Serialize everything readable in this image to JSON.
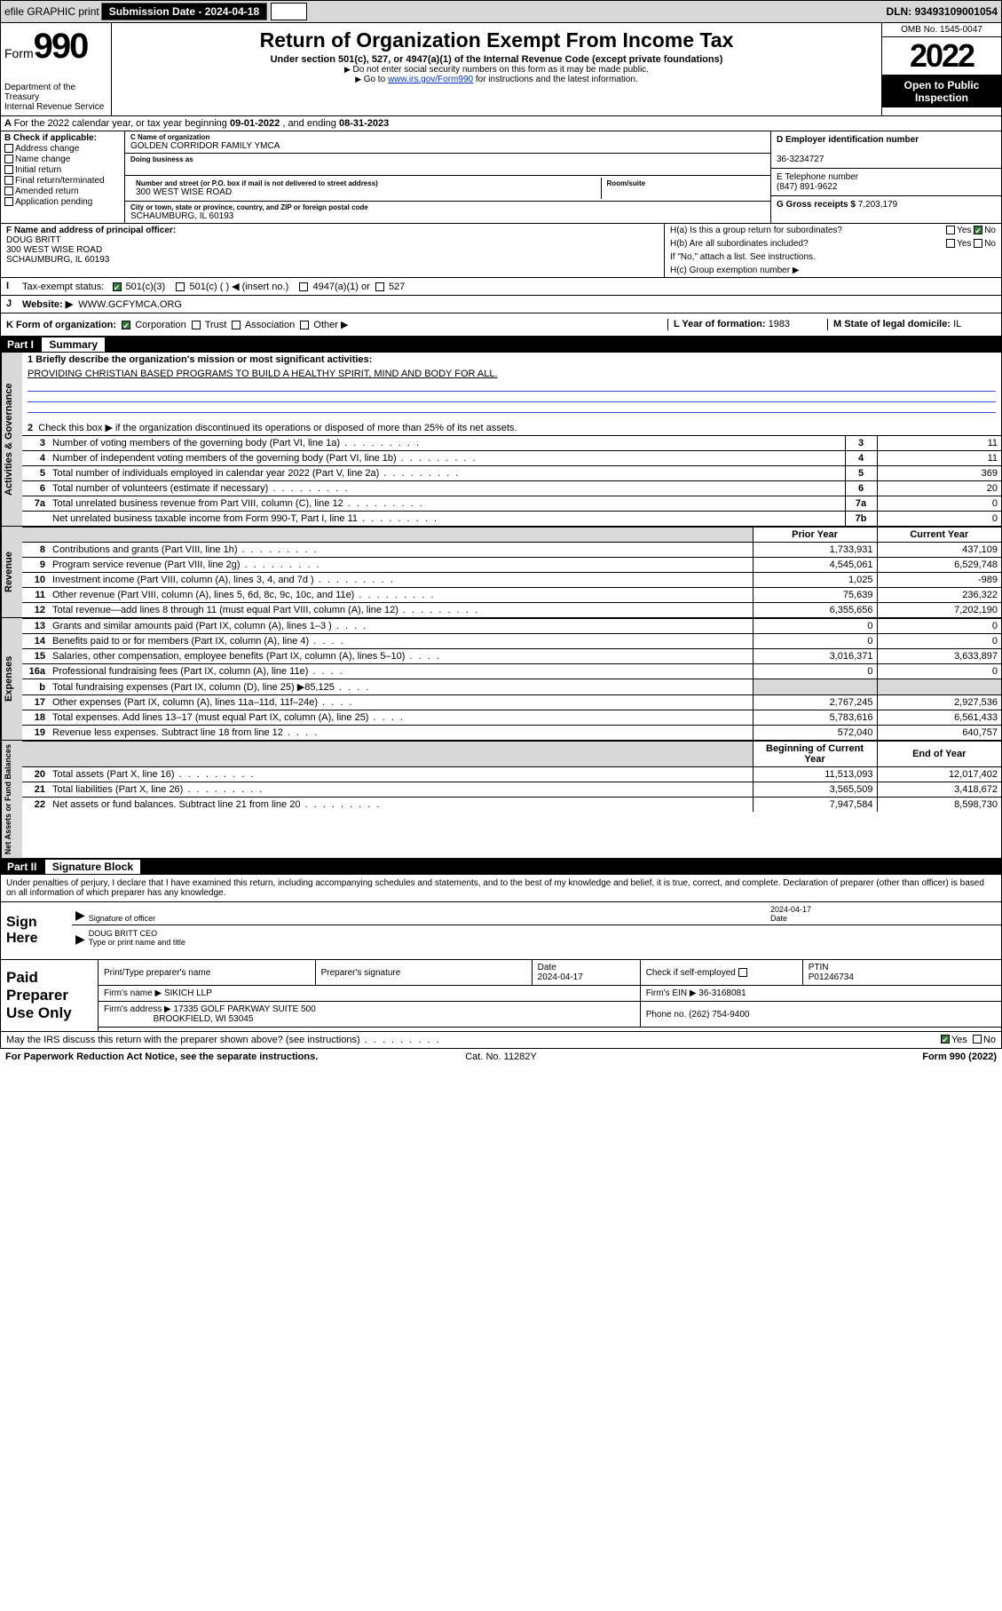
{
  "top": {
    "efile": "efile GRAPHIC print",
    "subdate_lbl": "Submission Date -",
    "subdate": "2024-04-18",
    "dln_lbl": "DLN:",
    "dln": "93493109001054"
  },
  "hdr": {
    "form": "Form",
    "num": "990",
    "dept": "Department of the Treasury",
    "irs": "Internal Revenue Service",
    "title": "Return of Organization Exempt From Income Tax",
    "sub": "Under section 501(c), 527, or 4947(a)(1) of the Internal Revenue Code (except private foundations)",
    "nossn": "Do not enter social security numbers on this form as it may be made public.",
    "goto": "Go to",
    "goto_url": "www.irs.gov/Form990",
    "goto_after": "for instructions and the latest information.",
    "omb": "OMB No. 1545-0047",
    "year": "2022",
    "pub1": "Open to Public",
    "pub2": "Inspection"
  },
  "a": {
    "text": "For the 2022 calendar year, or tax year beginning",
    "beg": "09-01-2022",
    "mid": ", and ending",
    "end": "08-31-2023"
  },
  "b": {
    "lbl": "B Check if applicable:",
    "items": [
      "Address change",
      "Name change",
      "Initial return",
      "Final return/terminated",
      "Amended return",
      "Application pending"
    ]
  },
  "c": {
    "name_lbl": "C Name of organization",
    "name": "GOLDEN CORRIDOR FAMILY YMCA",
    "dba_lbl": "Doing business as",
    "addr_lbl": "Number and street (or P.O. box if mail is not delivered to street address)",
    "room_lbl": "Room/suite",
    "addr": "300 WEST WISE ROAD",
    "city_lbl": "City or town, state or province, country, and ZIP or foreign postal code",
    "city": "SCHAUMBURG, IL  60193"
  },
  "d": {
    "lbl": "D Employer identification number",
    "val": "36-3234727"
  },
  "e": {
    "lbl": "E Telephone number",
    "val": "(847) 891-9622"
  },
  "g": {
    "lbl": "G Gross receipts $",
    "val": "7,203,179"
  },
  "f": {
    "lbl": "F  Name and address of principal officer:",
    "name": "DOUG BRITT",
    "addr1": "300 WEST WISE ROAD",
    "addr2": "SCHAUMBURG, IL  60193"
  },
  "h": {
    "ha": "H(a)  Is this a group return for subordinates?",
    "hb": "H(b)  Are all subordinates included?",
    "hb_note": "If \"No,\" attach a list. See instructions.",
    "hc": "H(c)  Group exemption number ▶",
    "yes": "Yes",
    "no": "No"
  },
  "i": {
    "lbl": "Tax-exempt status:",
    "s1": "501(c)(3)",
    "s2": "501(c) (  ) ◀ (insert no.)",
    "s3": "4947(a)(1) or",
    "s4": "527"
  },
  "j": {
    "lbl": "Website: ▶",
    "val": "WWW.GCFYMCA.ORG"
  },
  "k": {
    "lbl": "K Form of organization:",
    "o1": "Corporation",
    "o2": "Trust",
    "o3": "Association",
    "o4": "Other ▶"
  },
  "l": {
    "lbl": "L Year of formation:",
    "val": "1983"
  },
  "m": {
    "lbl": "M State of legal domicile:",
    "val": "IL"
  },
  "part1": {
    "hdr": "Part I",
    "title": "Summary"
  },
  "gov": {
    "tab": "Activities & Governance",
    "l1": "1   Briefly describe the organization's mission or most significant activities:",
    "mission": "PROVIDING CHRISTIAN BASED PROGRAMS TO BUILD A HEALTHY SPIRIT, MIND AND BODY FOR ALL.",
    "l2": "Check this box ▶        if the organization discontinued its operations or disposed of more than 25% of its net assets.",
    "rows": [
      {
        "n": "3",
        "t": "Number of voting members of the governing body (Part VI, line 1a)",
        "b": "3",
        "v": "11"
      },
      {
        "n": "4",
        "t": "Number of independent voting members of the governing body (Part VI, line 1b)",
        "b": "4",
        "v": "11"
      },
      {
        "n": "5",
        "t": "Total number of individuals employed in calendar year 2022 (Part V, line 2a)",
        "b": "5",
        "v": "369"
      },
      {
        "n": "6",
        "t": "Total number of volunteers (estimate if necessary)",
        "b": "6",
        "v": "20"
      },
      {
        "n": "7a",
        "t": "Total unrelated business revenue from Part VIII, column (C), line 12",
        "b": "7a",
        "v": "0"
      },
      {
        "n": "",
        "t": "Net unrelated business taxable income from Form 990-T, Part I, line 11",
        "b": "7b",
        "v": "0"
      }
    ]
  },
  "rev": {
    "tab": "Revenue",
    "hdr_prior": "Prior Year",
    "hdr_curr": "Current Year",
    "rows": [
      {
        "n": "8",
        "t": "Contributions and grants (Part VIII, line 1h)",
        "p": "1,733,931",
        "c": "437,109"
      },
      {
        "n": "9",
        "t": "Program service revenue (Part VIII, line 2g)",
        "p": "4,545,061",
        "c": "6,529,748"
      },
      {
        "n": "10",
        "t": "Investment income (Part VIII, column (A), lines 3, 4, and 7d )",
        "p": "1,025",
        "c": "-989"
      },
      {
        "n": "11",
        "t": "Other revenue (Part VIII, column (A), lines 5, 6d, 8c, 9c, 10c, and 11e)",
        "p": "75,639",
        "c": "236,322"
      },
      {
        "n": "12",
        "t": "Total revenue—add lines 8 through 11 (must equal Part VIII, column (A), line 12)",
        "p": "6,355,656",
        "c": "7,202,190"
      }
    ]
  },
  "exp": {
    "tab": "Expenses",
    "rows": [
      {
        "n": "13",
        "t": "Grants and similar amounts paid (Part IX, column (A), lines 1–3 )",
        "p": "0",
        "c": "0"
      },
      {
        "n": "14",
        "t": "Benefits paid to or for members (Part IX, column (A), line 4)",
        "p": "0",
        "c": "0"
      },
      {
        "n": "15",
        "t": "Salaries, other compensation, employee benefits (Part IX, column (A), lines 5–10)",
        "p": "3,016,371",
        "c": "3,633,897"
      },
      {
        "n": "16a",
        "t": "Professional fundraising fees (Part IX, column (A), line 11e)",
        "p": "0",
        "c": "0"
      },
      {
        "n": "b",
        "t": "Total fundraising expenses (Part IX, column (D), line 25) ▶85,125",
        "p": "",
        "c": "",
        "shade": true
      },
      {
        "n": "17",
        "t": "Other expenses (Part IX, column (A), lines 11a–11d, 11f–24e)",
        "p": "2,767,245",
        "c": "2,927,536"
      },
      {
        "n": "18",
        "t": "Total expenses. Add lines 13–17 (must equal Part IX, column (A), line 25)",
        "p": "5,783,616",
        "c": "6,561,433"
      },
      {
        "n": "19",
        "t": "Revenue less expenses. Subtract line 18 from line 12",
        "p": "572,040",
        "c": "640,757"
      }
    ]
  },
  "net": {
    "tab": "Net Assets or Fund Balances",
    "hdr_beg": "Beginning of Current Year",
    "hdr_end": "End of Year",
    "rows": [
      {
        "n": "20",
        "t": "Total assets (Part X, line 16)",
        "p": "11,513,093",
        "c": "12,017,402"
      },
      {
        "n": "21",
        "t": "Total liabilities (Part X, line 26)",
        "p": "3,565,509",
        "c": "3,418,672"
      },
      {
        "n": "22",
        "t": "Net assets or fund balances. Subtract line 21 from line 20",
        "p": "7,947,584",
        "c": "8,598,730"
      }
    ]
  },
  "part2": {
    "hdr": "Part II",
    "title": "Signature Block"
  },
  "sig": {
    "decl": "Under penalties of perjury, I declare that I have examined this return, including accompanying schedules and statements, and to the best of my knowledge and belief, it is true, correct, and complete. Declaration of preparer (other than officer) is based on all information of which preparer has any knowledge.",
    "here": "Sign Here",
    "sig_lbl": "Signature of officer",
    "date_lbl": "Date",
    "date": "2024-04-17",
    "name": "DOUG BRITT CEO",
    "name_lbl": "Type or print name and title"
  },
  "paid": {
    "lbl": "Paid Preparer Use Only",
    "h1": "Print/Type preparer's name",
    "h2": "Preparer's signature",
    "h3": "Date",
    "h3v": "2024-04-17",
    "h4": "Check        if self-employed",
    "h5": "PTIN",
    "h5v": "P01246734",
    "firm_lbl": "Firm's name   ▶",
    "firm": "SIKICH LLP",
    "ein_lbl": "Firm's EIN ▶",
    "ein": "36-3168081",
    "addr_lbl": "Firm's address ▶",
    "addr1": "17335 GOLF PARKWAY SUITE 500",
    "addr2": "BROOKFIELD, WI  53045",
    "phone_lbl": "Phone no.",
    "phone": "(262) 754-9400"
  },
  "foot": {
    "discuss": "May the IRS discuss this return with the preparer shown above? (see instructions)",
    "yes": "Yes",
    "no": "No",
    "pra": "For Paperwork Reduction Act Notice, see the separate instructions.",
    "cat": "Cat. No. 11282Y",
    "form": "Form 990 (2022)"
  }
}
